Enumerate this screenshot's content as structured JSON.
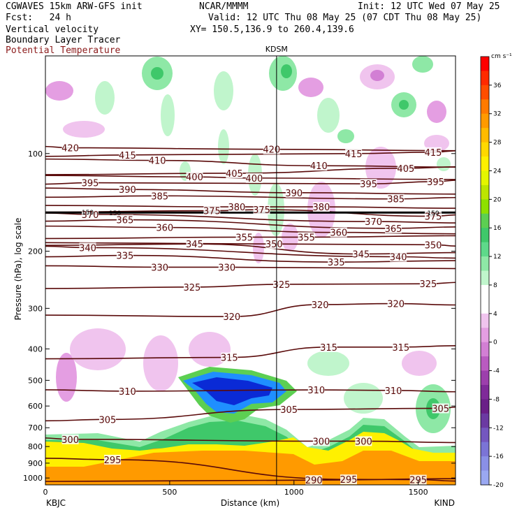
{
  "header": {
    "model": "CGWAVES 15km ARW-GFS init",
    "org": "NCAR/MMMM",
    "init": "Init: 12 UTC Wed 07 May 25",
    "fcst": "Fcst:   24 h",
    "valid": "Valid: 12 UTC Thu 08 May 25 (07 CDT Thu 08 May 25)",
    "field1": "Vertical velocity",
    "field2": "Boundary Layer Tracer",
    "field3": "Potential Temperature",
    "xy": "XY= 150.5,136.9 to 260.4,139.6"
  },
  "colors": {
    "theta": "#5a0a0a",
    "field3_text": "#8b1a1a"
  },
  "chart_data": {
    "type": "heatmap",
    "xlabel": "Distance (km)",
    "ylabel": "Pressure (hPa), log scale",
    "xlim": [
      0,
      1650
    ],
    "ylim": [
      1050,
      50
    ],
    "y_scale": "log",
    "x_ticks": [
      0,
      500,
      1000,
      1500
    ],
    "y_ticks": [
      100,
      200,
      300,
      400,
      500,
      600,
      700,
      800,
      900,
      1000
    ],
    "station_left": "KBJC",
    "station_right": "KIND",
    "station_mid": "KDSM",
    "station_mid_x": 930,
    "colorbar": {
      "unit": "cm s⁻¹",
      "ticks": [
        "36",
        "32",
        "28",
        "24",
        "20",
        "16",
        "12",
        "8",
        "4",
        "0",
        "-4",
        "-8",
        "-12",
        "-16",
        "-20"
      ],
      "colors": [
        "#ff0000",
        "#ff2a00",
        "#ff4d00",
        "#ff7a00",
        "#ff9a00",
        "#ffbb00",
        "#ffd800",
        "#fff000",
        "#e4f500",
        "#bde500",
        "#8ee000",
        "#5ccf52",
        "#3fc86a",
        "#5ed98a",
        "#8ee8a6",
        "#c0f5cc",
        "#ffffff",
        "#ffffff",
        "#f0c4ee",
        "#e49ee2",
        "#d27fd4",
        "#b95bc0",
        "#9c3fac",
        "#7f2a99",
        "#6a1f88",
        "#6b3aa2",
        "#7457bf",
        "#7b74d6",
        "#8a8fe6",
        "#9aa8f2"
      ]
    },
    "theta_contours": [
      {
        "value": 295,
        "labels": [
          [
            270,
            878
          ],
          [
            1220,
            1010
          ],
          [
            1500,
            1012
          ]
        ]
      },
      {
        "value": 290,
        "labels": [
          [
            1080,
            1015
          ]
        ]
      },
      {
        "value": 300,
        "labels": [
          [
            100,
            760
          ],
          [
            1110,
            770
          ],
          [
            1280,
            770
          ]
        ]
      },
      {
        "value": 305,
        "labels": [
          [
            250,
            660
          ],
          [
            980,
            615
          ],
          [
            1590,
            610
          ]
        ]
      },
      {
        "value": 310,
        "labels": [
          [
            330,
            540
          ],
          [
            1090,
            535
          ],
          [
            1400,
            537
          ]
        ]
      },
      {
        "value": 315,
        "labels": [
          [
            740,
            425
          ],
          [
            1140,
            395
          ],
          [
            1430,
            395
          ]
        ]
      },
      {
        "value": 320,
        "labels": [
          [
            750,
            318
          ],
          [
            1105,
            292
          ],
          [
            1410,
            290
          ]
        ]
      },
      {
        "value": 325,
        "labels": [
          [
            590,
            258
          ],
          [
            950,
            253
          ],
          [
            1540,
            252
          ]
        ]
      },
      {
        "value": 330,
        "labels": [
          [
            460,
            224
          ],
          [
            730,
            224
          ]
        ]
      },
      {
        "value": 335,
        "labels": [
          [
            320,
            206
          ],
          [
            1170,
            216
          ]
        ]
      },
      {
        "value": 340,
        "labels": [
          [
            170,
            195
          ],
          [
            1420,
            208
          ]
        ]
      },
      {
        "value": 345,
        "labels": [
          [
            600,
            190
          ],
          [
            1270,
            204
          ]
        ]
      },
      {
        "value": 350,
        "labels": [
          [
            920,
            190
          ],
          [
            1560,
            191
          ]
        ]
      },
      {
        "value": 355,
        "labels": [
          [
            800,
            181
          ],
          [
            1050,
            181
          ]
        ]
      },
      {
        "value": 360,
        "labels": [
          [
            480,
            169
          ],
          [
            1180,
            175
          ]
        ]
      },
      {
        "value": 365,
        "labels": [
          [
            320,
            160
          ],
          [
            1400,
            170
          ]
        ]
      },
      {
        "value": 370,
        "labels": [
          [
            180,
            154
          ],
          [
            1320,
            162
          ]
        ]
      },
      {
        "value": 375,
        "labels": [
          [
            670,
            150
          ],
          [
            870,
            149
          ],
          [
            1560,
            156
          ]
        ]
      },
      {
        "value": 380,
        "labels": [
          [
            770,
            146
          ],
          [
            1110,
            146
          ]
        ]
      },
      {
        "value": 385,
        "labels": [
          [
            460,
            135
          ],
          [
            1410,
            138
          ]
        ]
      },
      {
        "value": 390,
        "labels": [
          [
            330,
            129
          ],
          [
            1000,
            132
          ]
        ]
      },
      {
        "value": 395,
        "labels": [
          [
            180,
            123
          ],
          [
            1300,
            124
          ],
          [
            1570,
            122
          ]
        ]
      },
      {
        "value": 400,
        "labels": [
          [
            600,
            118
          ],
          [
            840,
            119
          ]
        ]
      },
      {
        "value": 405,
        "labels": [
          [
            760,
            115
          ],
          [
            1450,
            111
          ]
        ]
      },
      {
        "value": 410,
        "labels": [
          [
            450,
            105
          ],
          [
            1100,
            109
          ]
        ]
      },
      {
        "value": 415,
        "labels": [
          [
            330,
            101
          ],
          [
            1240,
            100
          ],
          [
            1560,
            99
          ]
        ]
      },
      {
        "value": 420,
        "labels": [
          [
            100,
            96
          ],
          [
            910,
            97
          ]
        ]
      }
    ],
    "tropopause_marker": {
      "value": "150",
      "labels": [
        [
          170,
          151
        ],
        [
          280,
          152
        ],
        [
          1560,
          152
        ]
      ]
    }
  }
}
